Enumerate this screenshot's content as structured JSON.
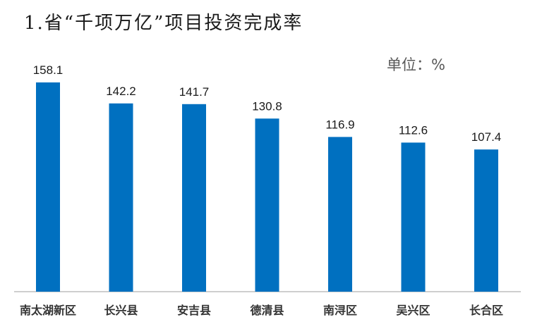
{
  "title": "1.省“千项万亿”项目投资完成率",
  "unit_label": "单位：%",
  "colors": {
    "bar": "#0070C0",
    "axis": "#BFBFBF"
  },
  "chart_data": {
    "type": "bar",
    "title": "1.省“千项万亿”项目投资完成率",
    "categories": [
      "南太湖新区",
      "长兴县",
      "安吉县",
      "德清县",
      "南浔区",
      "吴兴区",
      "长合区"
    ],
    "values": [
      158.1,
      142.2,
      141.7,
      130.8,
      116.9,
      112.6,
      107.4
    ],
    "value_labels": [
      "158.1",
      "142.2",
      "141.7",
      "130.8",
      "116.9",
      "112.6",
      "107.4"
    ],
    "unit": "%",
    "ylim": [
      0,
      165
    ],
    "grid": false,
    "legend": "none"
  }
}
